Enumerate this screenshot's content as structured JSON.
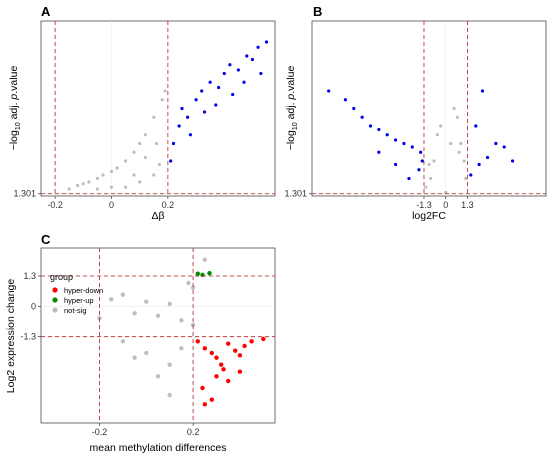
{
  "colors": {
    "not_sig": "#BEBEBE",
    "sig": "#0000EE",
    "hyper_down": "#FF0000",
    "hyper_up": "#008B00",
    "threshold_line": "#B22222"
  },
  "chart_data": [
    {
      "panel": "A",
      "type": "scatter",
      "xlabel": "Δβ",
      "ylabel": "−log10 adj. p.value",
      "xlim": [
        -0.25,
        0.58
      ],
      "ylim": [
        0,
        100
      ],
      "x_ticks": [
        "-0.2",
        "0",
        "0.2"
      ],
      "x_tick_values": [
        -0.2,
        0,
        0.2
      ],
      "y_ticks": [
        "1.301"
      ],
      "y_tick_values": [
        1.301
      ],
      "thresholds": {
        "x": [
          -0.2,
          0.2
        ],
        "y": [
          1.301
        ]
      },
      "grid": true,
      "series": [
        {
          "group": "not-sig",
          "color": "#BEBEBE",
          "points": [
            [
              -0.15,
              4
            ],
            [
              -0.12,
              6
            ],
            [
              -0.1,
              7
            ],
            [
              -0.08,
              8
            ],
            [
              -0.05,
              10
            ],
            [
              -0.03,
              12
            ],
            [
              0,
              14
            ],
            [
              0.02,
              16
            ],
            [
              0.05,
              20
            ],
            [
              0.08,
              25
            ],
            [
              0.1,
              30
            ],
            [
              0.12,
              35
            ],
            [
              0.15,
              45
            ],
            [
              0.18,
              55
            ],
            [
              0.19,
              60
            ],
            [
              0.05,
              5
            ],
            [
              0.1,
              8
            ],
            [
              0.15,
              12
            ],
            [
              0.17,
              18
            ],
            [
              0,
              5
            ],
            [
              -0.05,
              4
            ],
            [
              0.08,
              12
            ],
            [
              0.12,
              22
            ],
            [
              0.16,
              30
            ]
          ]
        },
        {
          "group": "sig",
          "color": "#0000EE",
          "points": [
            [
              0.21,
              20
            ],
            [
              0.22,
              30
            ],
            [
              0.24,
              40
            ],
            [
              0.25,
              50
            ],
            [
              0.27,
              45
            ],
            [
              0.3,
              55
            ],
            [
              0.32,
              60
            ],
            [
              0.35,
              65
            ],
            [
              0.38,
              62
            ],
            [
              0.4,
              70
            ],
            [
              0.42,
              75
            ],
            [
              0.45,
              72
            ],
            [
              0.48,
              80
            ],
            [
              0.5,
              78
            ],
            [
              0.52,
              85
            ],
            [
              0.55,
              88
            ],
            [
              0.28,
              35
            ],
            [
              0.33,
              48
            ],
            [
              0.37,
              52
            ],
            [
              0.43,
              58
            ],
            [
              0.47,
              65
            ],
            [
              0.53,
              70
            ]
          ]
        }
      ]
    },
    {
      "panel": "B",
      "type": "scatter",
      "xlabel": "log2FC",
      "ylabel": "−log10 adj. p.value",
      "xlim": [
        -8,
        6
      ],
      "ylim": [
        0,
        100
      ],
      "x_ticks": [
        "-1.3",
        "0",
        "1.3"
      ],
      "x_tick_values": [
        -1.3,
        0,
        1.3
      ],
      "y_ticks": [
        "1.301"
      ],
      "y_tick_values": [
        1.301
      ],
      "thresholds": {
        "x": [
          -1.3,
          1.3
        ],
        "y": [
          1.301
        ]
      },
      "grid": true,
      "series": [
        {
          "group": "not-sig",
          "color": "#BEBEBE",
          "points": [
            [
              -1.2,
              5
            ],
            [
              -0.9,
              10
            ],
            [
              -0.7,
              20
            ],
            [
              -0.5,
              35
            ],
            [
              -0.3,
              40
            ],
            [
              0,
              2
            ],
            [
              0.3,
              30
            ],
            [
              0.5,
              50
            ],
            [
              0.7,
              45
            ],
            [
              0.9,
              30
            ],
            [
              1.1,
              20
            ],
            [
              1.2,
              10
            ],
            [
              -1,
              18
            ],
            [
              0.8,
              25
            ]
          ]
        },
        {
          "group": "sig",
          "color": "#0000EE",
          "points": [
            [
              -7,
              60
            ],
            [
              -6,
              55
            ],
            [
              -5.5,
              50
            ],
            [
              -5,
              45
            ],
            [
              -4.5,
              40
            ],
            [
              -4,
              38
            ],
            [
              -3.5,
              35
            ],
            [
              -3,
              32
            ],
            [
              -2.5,
              30
            ],
            [
              -2,
              28
            ],
            [
              -1.5,
              25
            ],
            [
              -1.4,
              20
            ],
            [
              -1.6,
              15
            ],
            [
              -2.2,
              10
            ],
            [
              -3,
              18
            ],
            [
              -4,
              25
            ],
            [
              1.5,
              12
            ],
            [
              2,
              18
            ],
            [
              2.5,
              22
            ],
            [
              3,
              30
            ],
            [
              3.5,
              28
            ],
            [
              4,
              20
            ],
            [
              1.8,
              40
            ],
            [
              2.2,
              60
            ]
          ]
        }
      ]
    },
    {
      "panel": "C",
      "type": "scatter",
      "xlabel": "mean methylation differences",
      "ylabel": "Log2 expression change",
      "xlim": [
        -0.45,
        0.55
      ],
      "ylim": [
        -5,
        2.5
      ],
      "x_ticks": [
        "-0.2",
        "0.2"
      ],
      "x_tick_values": [
        -0.2,
        0.2
      ],
      "y_ticks": [
        "1.3",
        "0",
        "-1.3"
      ],
      "y_tick_values": [
        1.3,
        0,
        -1.3
      ],
      "thresholds": {
        "x": [
          -0.2,
          0.2
        ],
        "y": [
          1.3,
          -1.3
        ]
      },
      "grid": true,
      "legend": {
        "title": "group",
        "placement": "top-left",
        "entries": [
          {
            "label": "hyper-down",
            "color": "#FF0000"
          },
          {
            "label": "hyper-up",
            "color": "#008B00"
          },
          {
            "label": "not-sig",
            "color": "#BEBEBE"
          }
        ]
      },
      "series": [
        {
          "group": "hyper-down",
          "color": "#FF0000",
          "points": [
            [
              0.22,
              -1.5
            ],
            [
              0.25,
              -1.8
            ],
            [
              0.28,
              -2.0
            ],
            [
              0.3,
              -2.2
            ],
            [
              0.32,
              -2.5
            ],
            [
              0.35,
              -1.6
            ],
            [
              0.38,
              -1.9
            ],
            [
              0.4,
              -2.1
            ],
            [
              0.42,
              -1.7
            ],
            [
              0.45,
              -1.5
            ],
            [
              0.5,
              -1.4
            ],
            [
              0.24,
              -3.5
            ],
            [
              0.3,
              -3.0
            ],
            [
              0.35,
              -3.2
            ],
            [
              0.4,
              -2.8
            ],
            [
              0.28,
              -4.0
            ],
            [
              0.25,
              -4.2
            ],
            [
              0.33,
              -2.7
            ]
          ]
        },
        {
          "group": "hyper-up",
          "color": "#008B00",
          "points": [
            [
              0.22,
              1.4
            ],
            [
              0.24,
              1.35
            ],
            [
              0.27,
              1.42
            ]
          ]
        },
        {
          "group": "not-sig",
          "color": "#BEBEBE",
          "points": [
            [
              -0.2,
              -0.5
            ],
            [
              -0.15,
              0.3
            ],
            [
              -0.1,
              0.5
            ],
            [
              -0.05,
              -0.3
            ],
            [
              0,
              0.2
            ],
            [
              0.05,
              -0.4
            ],
            [
              0.1,
              0.1
            ],
            [
              0.15,
              -0.6
            ],
            [
              0.2,
              -0.8
            ],
            [
              -0.1,
              -1.5
            ],
            [
              0,
              -2.0
            ],
            [
              0.1,
              -2.5
            ],
            [
              0.15,
              -1.8
            ],
            [
              0.05,
              -3.0
            ],
            [
              -0.05,
              -2.2
            ],
            [
              0.1,
              -3.8
            ],
            [
              0.2,
              0.8
            ],
            [
              0.18,
              1.0
            ],
            [
              0.25,
              2.0
            ]
          ]
        }
      ]
    }
  ]
}
